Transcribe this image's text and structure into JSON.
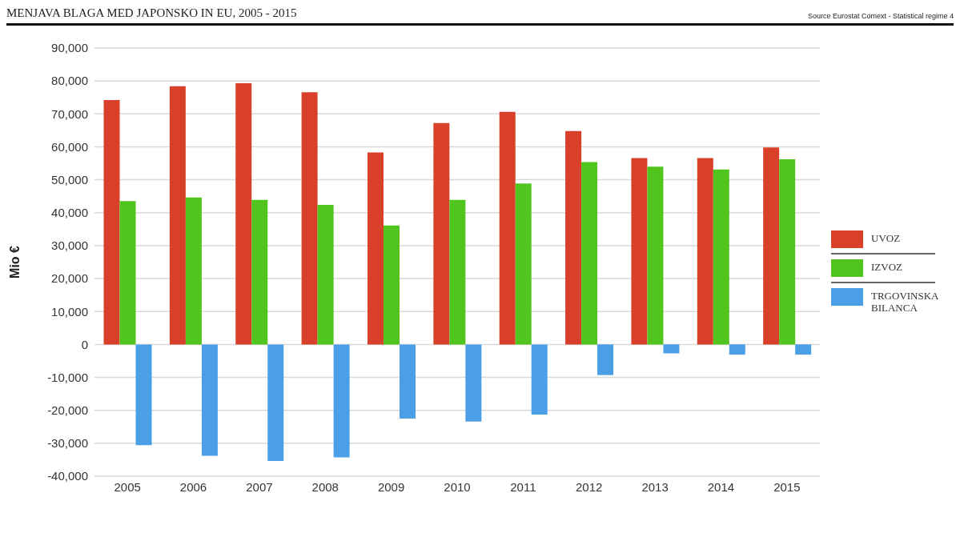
{
  "chart_data": {
    "type": "bar",
    "title": "MENJAVA BLAGA MED JAPONSKO IN EU, 2005 - 2015",
    "ylabel": "Mio €",
    "annotations": [
      "Source Eurostat Comext  - Statistical regime 4"
    ],
    "categories": [
      "2005",
      "2006",
      "2007",
      "2008",
      "2009",
      "2010",
      "2011",
      "2012",
      "2013",
      "2014",
      "2015"
    ],
    "series": [
      {
        "name": "UVOZ",
        "color": "#d8402a",
        "values": [
          74200,
          78400,
          79300,
          76600,
          58300,
          67200,
          70600,
          64800,
          56600,
          56600,
          59800
        ]
      },
      {
        "name": "IZVOZ",
        "color": "#52c41e",
        "values": [
          43500,
          44600,
          43900,
          42400,
          36100,
          43900,
          48900,
          55400,
          54000,
          53100,
          56200
        ]
      },
      {
        "name": "TRGOVINSKA BILANCA",
        "color": "#4a9fe6",
        "values": [
          -30600,
          -33800,
          -35400,
          -34300,
          -22500,
          -23400,
          -21300,
          -9300,
          -2700,
          -3100,
          -3100
        ]
      }
    ],
    "ylim": [
      -40000,
      90000
    ],
    "yticks": [
      {
        "value": -40000,
        "label": "-40,000"
      },
      {
        "value": -30000,
        "label": "-30,000"
      },
      {
        "value": -20000,
        "label": "-20,000"
      },
      {
        "value": -10000,
        "label": "-10,000"
      },
      {
        "value": 0,
        "label": "0"
      },
      {
        "value": 10000,
        "label": "10,000"
      },
      {
        "value": 20000,
        "label": "20,000"
      },
      {
        "value": 30000,
        "label": "30,000"
      },
      {
        "value": 40000,
        "label": "40,000"
      },
      {
        "value": 50000,
        "label": "50,000"
      },
      {
        "value": 60000,
        "label": "60,000"
      },
      {
        "value": 70000,
        "label": "70,000"
      },
      {
        "value": 80000,
        "label": "80,000"
      },
      {
        "value": 90000,
        "label": "90,000"
      }
    ],
    "grid": "y",
    "legend": "right"
  }
}
